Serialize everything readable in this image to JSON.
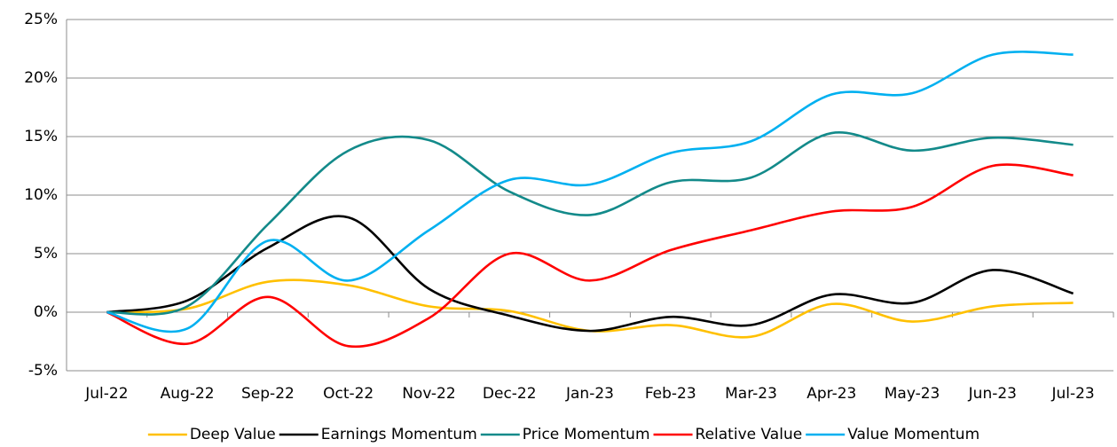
{
  "chart_data": {
    "type": "line",
    "categories": [
      "Jul-22",
      "Aug-22",
      "Sep-22",
      "Oct-22",
      "Nov-22",
      "Dec-22",
      "Jan-23",
      "Feb-23",
      "Mar-23",
      "Apr-23",
      "May-23",
      "Jun-23",
      "Jul-23"
    ],
    "series": [
      {
        "name": "Deep Value",
        "color": "#ffc000",
        "values": [
          0,
          0.3,
          2.6,
          2.3,
          0.5,
          0.1,
          -1.6,
          -1.1,
          -2.1,
          0.7,
          -0.8,
          0.5,
          0.8
        ]
      },
      {
        "name": "Earnings Momentum",
        "color": "#000000",
        "values": [
          0,
          1.0,
          5.5,
          8.1,
          2.0,
          -0.3,
          -1.6,
          -0.4,
          -1.1,
          1.5,
          0.8,
          3.6,
          1.6
        ]
      },
      {
        "name": "Price Momentum",
        "color": "#138a8a",
        "values": [
          0,
          0.5,
          7.5,
          13.8,
          14.7,
          10.3,
          8.3,
          11.1,
          11.5,
          15.3,
          13.8,
          14.9,
          14.3
        ]
      },
      {
        "name": "Relative Value",
        "color": "#ff0000",
        "values": [
          0,
          -2.7,
          1.3,
          -2.9,
          -0.5,
          5.0,
          2.7,
          5.3,
          7.0,
          8.6,
          9.0,
          12.5,
          11.7
        ]
      },
      {
        "name": "Value Momentum",
        "color": "#00b0f0",
        "values": [
          0,
          -1.4,
          6.1,
          2.7,
          7.0,
          11.3,
          10.9,
          13.6,
          14.6,
          18.6,
          18.7,
          22.0,
          22.0
        ]
      }
    ],
    "ylim": [
      -5,
      25
    ],
    "yticks": [
      {
        "value": -5,
        "label": "-5%"
      },
      {
        "value": 0,
        "label": "0%"
      },
      {
        "value": 5,
        "label": "5%"
      },
      {
        "value": 10,
        "label": "10%"
      },
      {
        "value": 15,
        "label": "15%"
      },
      {
        "value": 20,
        "label": "20%"
      },
      {
        "value": 25,
        "label": "25%"
      }
    ],
    "grid": true,
    "legend": "bottom",
    "smooth": true
  }
}
